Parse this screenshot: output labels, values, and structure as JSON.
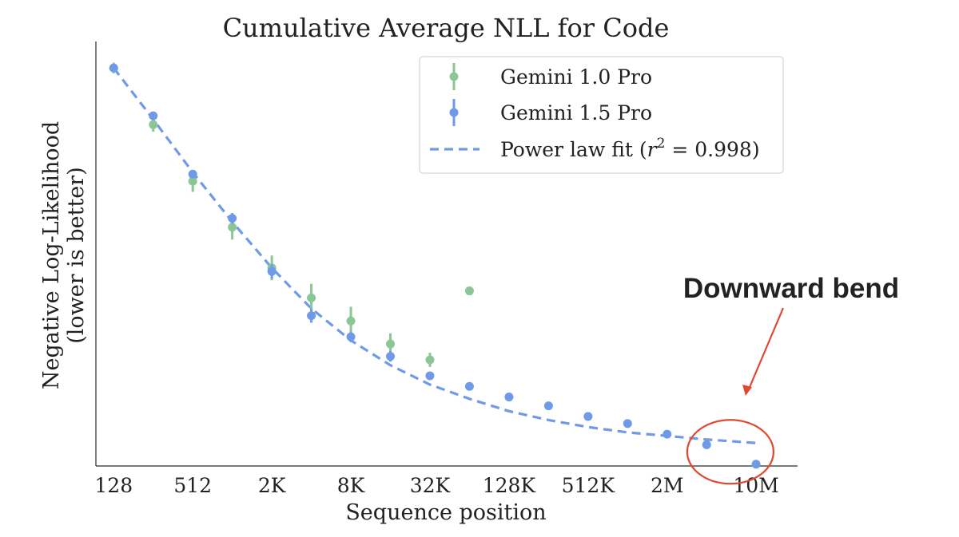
{
  "chart_data": {
    "type": "scatter",
    "title": "Cumulative Average NLL for Code",
    "xlabel": "Sequence position",
    "ylabel_line1": "Negative Log-Likelihood",
    "ylabel_line2": "(lower is better)",
    "x_scale": "log2",
    "xlim_log2": [
      6.55,
      24.3
    ],
    "ylim": [
      0.05,
      2.45
    ],
    "yticks_visible": false,
    "grid": false,
    "x_ticks": [
      {
        "label": "128",
        "log2": 7
      },
      {
        "label": "512",
        "log2": 9
      },
      {
        "label": "2K",
        "log2": 11
      },
      {
        "label": "8K",
        "log2": 13
      },
      {
        "label": "32K",
        "log2": 15
      },
      {
        "label": "128K",
        "log2": 17
      },
      {
        "label": "512K",
        "log2": 19
      },
      {
        "label": "2M",
        "log2": 21
      },
      {
        "label": "10M",
        "log2": 23.25
      }
    ],
    "series": [
      {
        "name": "Gemini 1.0 Pro",
        "color": "#8cc596",
        "points": [
          {
            "log2": 7,
            "y": 2.3,
            "err": 0.03
          },
          {
            "log2": 8,
            "y": 1.98,
            "err": 0.04
          },
          {
            "log2": 9,
            "y": 1.66,
            "err": 0.06
          },
          {
            "log2": 10,
            "y": 1.4,
            "err": 0.07
          },
          {
            "log2": 11,
            "y": 1.17,
            "err": 0.07
          },
          {
            "log2": 12,
            "y": 1.0,
            "err": 0.08
          },
          {
            "log2": 13,
            "y": 0.87,
            "err": 0.08
          },
          {
            "log2": 14,
            "y": 0.74,
            "err": 0.06
          },
          {
            "log2": 15,
            "y": 0.65,
            "err": 0.04
          },
          {
            "log2": 16,
            "y": 1.04,
            "err": 0.0
          }
        ]
      },
      {
        "name": "Gemini 1.5 Pro",
        "color": "#6e9ae8",
        "points": [
          {
            "log2": 7,
            "y": 2.3,
            "err": 0.0
          },
          {
            "log2": 8,
            "y": 2.03,
            "err": 0.02
          },
          {
            "log2": 9,
            "y": 1.7,
            "err": 0.02
          },
          {
            "log2": 10,
            "y": 1.45,
            "err": 0.03
          },
          {
            "log2": 11,
            "y": 1.15,
            "err": 0.04
          },
          {
            "log2": 12,
            "y": 0.9,
            "err": 0.04
          },
          {
            "log2": 13,
            "y": 0.78,
            "err": 0.03
          },
          {
            "log2": 14,
            "y": 0.67,
            "err": 0.03
          },
          {
            "log2": 15,
            "y": 0.56,
            "err": 0.02
          },
          {
            "log2": 16,
            "y": 0.5,
            "err": 0.0
          },
          {
            "log2": 17,
            "y": 0.44,
            "err": 0.0
          },
          {
            "log2": 18,
            "y": 0.39,
            "err": 0.0
          },
          {
            "log2": 19,
            "y": 0.33,
            "err": 0.0
          },
          {
            "log2": 20,
            "y": 0.29,
            "err": 0.0
          },
          {
            "log2": 21,
            "y": 0.23,
            "err": 0.0
          },
          {
            "log2": 22,
            "y": 0.17,
            "err": 0.0
          },
          {
            "log2": 23.25,
            "y": 0.06,
            "err": 0.0
          }
        ]
      }
    ],
    "fit": {
      "name": "Power law fit (r² = 0.998)",
      "color": "#6e9ae8",
      "dashed": true,
      "points": [
        {
          "log2": 7,
          "y": 2.3
        },
        {
          "log2": 8,
          "y": 2.01
        },
        {
          "log2": 9,
          "y": 1.71
        },
        {
          "log2": 10,
          "y": 1.43
        },
        {
          "log2": 11,
          "y": 1.17
        },
        {
          "log2": 12,
          "y": 0.94
        },
        {
          "log2": 13,
          "y": 0.76
        },
        {
          "log2": 14,
          "y": 0.62
        },
        {
          "log2": 15,
          "y": 0.51
        },
        {
          "log2": 16,
          "y": 0.43
        },
        {
          "log2": 17,
          "y": 0.36
        },
        {
          "log2": 18,
          "y": 0.31
        },
        {
          "log2": 19,
          "y": 0.27
        },
        {
          "log2": 20,
          "y": 0.24
        },
        {
          "log2": 21,
          "y": 0.22
        },
        {
          "log2": 22,
          "y": 0.2
        },
        {
          "log2": 23.25,
          "y": 0.18
        }
      ]
    },
    "legend": {
      "placement": "top-right",
      "entries": [
        {
          "label": "Gemini 1.0 Pro"
        },
        {
          "label": "Gemini 1.5 Pro"
        },
        {
          "label_prefix": "Power law fit (",
          "label_var": "r",
          "label_sup": "2",
          "label_suffix": " =  0.998)"
        }
      ]
    },
    "annotation": {
      "text": "Downward bend",
      "color": "#e0482f",
      "target_log2": 22.6,
      "target_y": 0.13
    }
  }
}
